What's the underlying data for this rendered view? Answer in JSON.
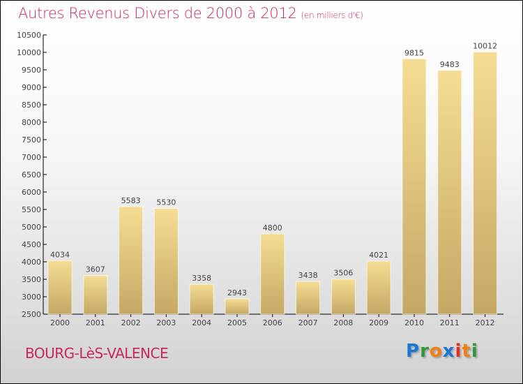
{
  "chart_data": {
    "type": "bar",
    "title": "Autres Revenus Divers de 2000 à 2012",
    "subtitle": "(en milliers d'€)",
    "categories": [
      "2000",
      "2001",
      "2002",
      "2003",
      "2004",
      "2005",
      "2006",
      "2007",
      "2008",
      "2009",
      "2010",
      "2011",
      "2012"
    ],
    "values": [
      4034,
      3607,
      5583,
      5530,
      3358,
      2943,
      4800,
      3438,
      3506,
      4021,
      9815,
      9483,
      10012
    ],
    "ylim": [
      2500,
      10500
    ],
    "yticks": [
      2500,
      3000,
      3500,
      4000,
      4500,
      5000,
      5500,
      6000,
      6500,
      7000,
      7500,
      8000,
      8500,
      9000,
      9500,
      10000,
      10500
    ],
    "xlabel": "",
    "ylabel": "",
    "grid": false,
    "legend": "none",
    "colors": {
      "bar_top": "#f5dd94",
      "bar_bottom": "#c4a864",
      "title": "#c8285a"
    }
  },
  "footer": {
    "city": "BOURG-LèS-VALENCE",
    "logo": "Proxiti"
  }
}
